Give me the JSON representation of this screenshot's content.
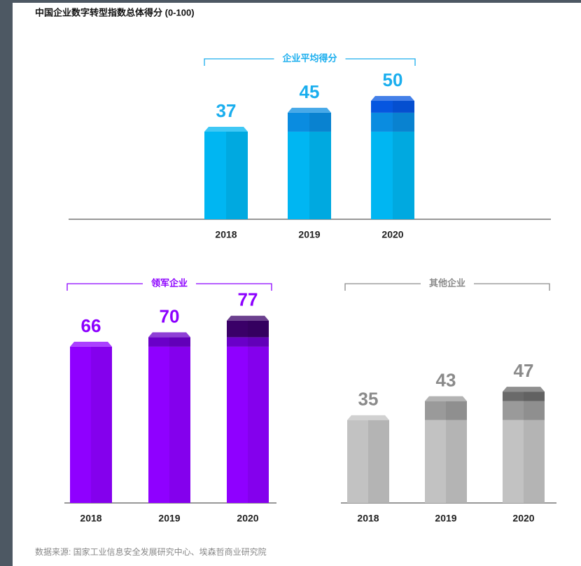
{
  "title": "中国企业数字转型指数总体得分 (0-100)",
  "source": "数据来源: 国家工业信息安全发展研究中心、埃森哲商业研究院",
  "chart_data": [
    {
      "type": "bar",
      "title": "企业平均得分",
      "categories": [
        "2018",
        "2019",
        "2020"
      ],
      "values": [
        37,
        45,
        50
      ],
      "colors": [
        "#00b6f2",
        "#0a8ce0",
        "#0656e0"
      ],
      "label_color": "#1aaeee",
      "ylim": [
        0,
        100
      ]
    },
    {
      "type": "bar",
      "title": "领军企业",
      "categories": [
        "2018",
        "2019",
        "2020"
      ],
      "values": [
        66,
        70,
        77
      ],
      "colors": [
        "#8f00ff",
        "#6a00c8",
        "#3a0068"
      ],
      "label_color": "#8c00ff",
      "ylim": [
        0,
        100
      ]
    },
    {
      "type": "bar",
      "title": "其他企业",
      "categories": [
        "2018",
        "2019",
        "2020"
      ],
      "values": [
        35,
        43,
        47
      ],
      "colors": [
        "#c2c2c2",
        "#9a9a9a",
        "#6a6a6a"
      ],
      "label_color": "#8a8a8a",
      "ylim": [
        0,
        100
      ]
    }
  ]
}
